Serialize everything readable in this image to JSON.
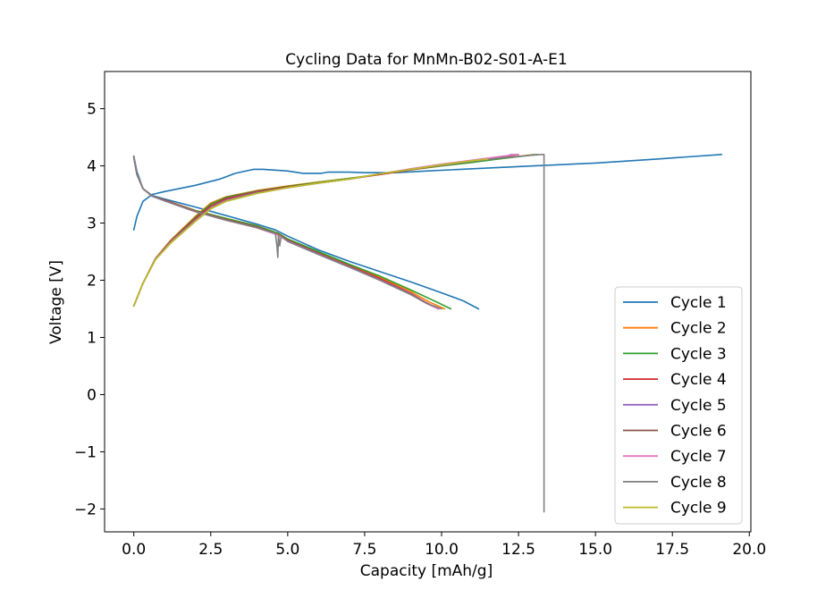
{
  "chart_data": {
    "type": "line",
    "title": "Cycling Data for MnMn-B02-S01-A-E1",
    "xlabel": "Capacity [mAh/g]",
    "ylabel": "Voltage [V]",
    "xlim": [
      -0.95,
      20.05
    ],
    "ylim": [
      -2.4,
      5.65
    ],
    "xticks": [
      0.0,
      2.5,
      5.0,
      7.5,
      10.0,
      12.5,
      15.0,
      17.5,
      20.0
    ],
    "xtick_labels": [
      "0.0",
      "2.5",
      "5.0",
      "7.5",
      "10.0",
      "12.5",
      "15.0",
      "17.5",
      "20.0"
    ],
    "yticks": [
      -2,
      -1,
      0,
      1,
      2,
      3,
      4,
      5
    ],
    "ytick_labels": [
      "−2",
      "−1",
      "0",
      "1",
      "2",
      "3",
      "4",
      "5"
    ],
    "grid": false,
    "legend_position": "lower-right",
    "series": [
      {
        "name": "Cycle 1",
        "color": "#1f77b4",
        "charge": [
          [
            0.0,
            2.88
          ],
          [
            0.1,
            3.12
          ],
          [
            0.3,
            3.38
          ],
          [
            0.6,
            3.5
          ],
          [
            1.0,
            3.55
          ],
          [
            2.0,
            3.66
          ],
          [
            2.8,
            3.77
          ],
          [
            3.3,
            3.87
          ],
          [
            3.9,
            3.94
          ],
          [
            4.2,
            3.94
          ],
          [
            5.0,
            3.91
          ],
          [
            5.5,
            3.87
          ],
          [
            6.1,
            3.87
          ],
          [
            6.3,
            3.89
          ],
          [
            7.0,
            3.89
          ],
          [
            7.5,
            3.88
          ],
          [
            8.5,
            3.88
          ],
          [
            9.5,
            3.91
          ],
          [
            11.0,
            3.95
          ],
          [
            13.0,
            4.0
          ],
          [
            15.0,
            4.05
          ],
          [
            17.0,
            4.12
          ],
          [
            19.1,
            4.2
          ]
        ],
        "discharge": [
          [
            0.0,
            4.17
          ],
          [
            0.1,
            3.9
          ],
          [
            0.3,
            3.6
          ],
          [
            0.6,
            3.48
          ],
          [
            1.0,
            3.42
          ],
          [
            2.0,
            3.28
          ],
          [
            3.0,
            3.13
          ],
          [
            4.0,
            2.98
          ],
          [
            4.6,
            2.88
          ],
          [
            5.0,
            2.77
          ],
          [
            6.0,
            2.53
          ],
          [
            7.0,
            2.33
          ],
          [
            8.0,
            2.15
          ],
          [
            9.0,
            1.97
          ],
          [
            10.0,
            1.78
          ],
          [
            10.7,
            1.64
          ],
          [
            11.2,
            1.5
          ]
        ]
      },
      {
        "name": "Cycle 2",
        "color": "#ff7f0e",
        "charge": [
          [
            0.0,
            1.55
          ],
          [
            0.3,
            1.95
          ],
          [
            0.7,
            2.38
          ],
          [
            1.2,
            2.7
          ],
          [
            2.0,
            3.12
          ],
          [
            2.5,
            3.35
          ],
          [
            3.0,
            3.46
          ],
          [
            4.0,
            3.57
          ],
          [
            5.0,
            3.65
          ],
          [
            6.0,
            3.72
          ],
          [
            7.0,
            3.78
          ],
          [
            8.0,
            3.85
          ],
          [
            9.0,
            3.93
          ],
          [
            10.0,
            4.0
          ],
          [
            11.0,
            4.07
          ],
          [
            12.0,
            4.13
          ],
          [
            13.0,
            4.2
          ]
        ],
        "discharge": [
          [
            0.0,
            4.15
          ],
          [
            0.1,
            3.85
          ],
          [
            0.3,
            3.6
          ],
          [
            0.6,
            3.47
          ],
          [
            1.0,
            3.4
          ],
          [
            2.0,
            3.22
          ],
          [
            3.0,
            3.08
          ],
          [
            4.0,
            2.95
          ],
          [
            4.7,
            2.82
          ],
          [
            5.0,
            2.72
          ],
          [
            6.0,
            2.49
          ],
          [
            7.0,
            2.27
          ],
          [
            8.0,
            2.05
          ],
          [
            9.0,
            1.8
          ],
          [
            9.6,
            1.62
          ],
          [
            10.1,
            1.5
          ]
        ]
      },
      {
        "name": "Cycle 3",
        "color": "#2ca02c",
        "charge": [
          [
            0.0,
            1.55
          ],
          [
            0.3,
            1.95
          ],
          [
            0.7,
            2.37
          ],
          [
            1.2,
            2.69
          ],
          [
            2.0,
            3.1
          ],
          [
            2.5,
            3.33
          ],
          [
            3.0,
            3.45
          ],
          [
            4.0,
            3.56
          ],
          [
            5.0,
            3.64
          ],
          [
            6.0,
            3.71
          ],
          [
            7.0,
            3.78
          ],
          [
            8.0,
            3.85
          ],
          [
            9.0,
            3.93
          ],
          [
            10.0,
            4.0
          ],
          [
            11.0,
            4.06
          ],
          [
            12.0,
            4.13
          ],
          [
            13.1,
            4.2
          ]
        ],
        "discharge": [
          [
            0.0,
            4.15
          ],
          [
            0.1,
            3.85
          ],
          [
            0.3,
            3.6
          ],
          [
            0.6,
            3.47
          ],
          [
            1.0,
            3.4
          ],
          [
            2.0,
            3.22
          ],
          [
            3.0,
            3.08
          ],
          [
            4.0,
            2.95
          ],
          [
            4.7,
            2.82
          ],
          [
            5.0,
            2.72
          ],
          [
            6.0,
            2.5
          ],
          [
            7.0,
            2.28
          ],
          [
            8.0,
            2.07
          ],
          [
            9.0,
            1.83
          ],
          [
            9.8,
            1.63
          ],
          [
            10.3,
            1.5
          ]
        ]
      },
      {
        "name": "Cycle 4",
        "color": "#d62728",
        "charge": [
          [
            0.0,
            1.55
          ],
          [
            0.3,
            1.95
          ],
          [
            0.7,
            2.37
          ],
          [
            1.2,
            2.68
          ],
          [
            2.0,
            3.08
          ],
          [
            2.5,
            3.3
          ],
          [
            3.0,
            3.43
          ],
          [
            4.0,
            3.55
          ],
          [
            5.0,
            3.63
          ],
          [
            6.0,
            3.7
          ],
          [
            7.0,
            3.77
          ],
          [
            8.0,
            3.85
          ],
          [
            9.0,
            3.93
          ],
          [
            10.0,
            4.01
          ],
          [
            11.0,
            4.08
          ],
          [
            12.0,
            4.15
          ],
          [
            12.5,
            4.2
          ]
        ],
        "discharge": [
          [
            0.0,
            4.15
          ],
          [
            0.1,
            3.85
          ],
          [
            0.3,
            3.6
          ],
          [
            0.6,
            3.47
          ],
          [
            1.0,
            3.4
          ],
          [
            2.0,
            3.21
          ],
          [
            3.0,
            3.06
          ],
          [
            4.0,
            2.93
          ],
          [
            4.7,
            2.8
          ],
          [
            5.0,
            2.7
          ],
          [
            6.0,
            2.47
          ],
          [
            7.0,
            2.25
          ],
          [
            8.0,
            2.03
          ],
          [
            9.0,
            1.77
          ],
          [
            9.5,
            1.61
          ],
          [
            9.9,
            1.5
          ]
        ]
      },
      {
        "name": "Cycle 5",
        "color": "#9467bd",
        "charge": [
          [
            0.0,
            1.55
          ],
          [
            0.3,
            1.95
          ],
          [
            0.7,
            2.37
          ],
          [
            1.2,
            2.67
          ],
          [
            2.0,
            3.06
          ],
          [
            2.5,
            3.28
          ],
          [
            3.0,
            3.41
          ],
          [
            4.0,
            3.54
          ],
          [
            5.0,
            3.62
          ],
          [
            6.0,
            3.7
          ],
          [
            7.0,
            3.77
          ],
          [
            8.0,
            3.86
          ],
          [
            9.0,
            3.94
          ],
          [
            10.0,
            4.02
          ],
          [
            11.0,
            4.09
          ],
          [
            12.0,
            4.16
          ],
          [
            12.3,
            4.2
          ]
        ],
        "discharge": [
          [
            0.0,
            4.15
          ],
          [
            0.1,
            3.85
          ],
          [
            0.3,
            3.6
          ],
          [
            0.6,
            3.47
          ],
          [
            1.0,
            3.39
          ],
          [
            2.0,
            3.2
          ],
          [
            3.0,
            3.05
          ],
          [
            4.0,
            2.92
          ],
          [
            4.7,
            2.79
          ],
          [
            5.0,
            2.69
          ],
          [
            6.0,
            2.46
          ],
          [
            7.0,
            2.24
          ],
          [
            8.0,
            2.01
          ],
          [
            9.0,
            1.76
          ],
          [
            9.5,
            1.6
          ],
          [
            9.9,
            1.5
          ]
        ]
      },
      {
        "name": "Cycle 6",
        "color": "#8c564b",
        "charge": [
          [
            0.0,
            1.55
          ],
          [
            0.3,
            1.95
          ],
          [
            0.7,
            2.36
          ],
          [
            1.2,
            2.66
          ],
          [
            2.0,
            3.05
          ],
          [
            2.5,
            3.27
          ],
          [
            3.0,
            3.4
          ],
          [
            4.0,
            3.53
          ],
          [
            5.0,
            3.62
          ],
          [
            6.0,
            3.7
          ],
          [
            7.0,
            3.77
          ],
          [
            8.0,
            3.86
          ],
          [
            9.0,
            3.94
          ],
          [
            10.0,
            4.02
          ],
          [
            11.0,
            4.09
          ],
          [
            12.0,
            4.16
          ],
          [
            12.4,
            4.2
          ]
        ],
        "discharge": [
          [
            0.0,
            4.15
          ],
          [
            0.1,
            3.85
          ],
          [
            0.3,
            3.6
          ],
          [
            0.6,
            3.47
          ],
          [
            1.0,
            3.39
          ],
          [
            2.0,
            3.2
          ],
          [
            3.0,
            3.05
          ],
          [
            4.0,
            2.92
          ],
          [
            4.7,
            2.79
          ],
          [
            5.0,
            2.68
          ],
          [
            6.0,
            2.45
          ],
          [
            7.0,
            2.23
          ],
          [
            8.0,
            2.0
          ],
          [
            9.0,
            1.75
          ],
          [
            9.5,
            1.6
          ],
          [
            9.9,
            1.5
          ]
        ]
      },
      {
        "name": "Cycle 7",
        "color": "#e377c2",
        "charge": [
          [
            0.0,
            1.55
          ],
          [
            0.3,
            1.95
          ],
          [
            0.7,
            2.36
          ],
          [
            1.2,
            2.66
          ],
          [
            2.0,
            3.04
          ],
          [
            2.5,
            3.26
          ],
          [
            3.0,
            3.39
          ],
          [
            4.0,
            3.52
          ],
          [
            5.0,
            3.62
          ],
          [
            6.0,
            3.7
          ],
          [
            7.0,
            3.77
          ],
          [
            8.0,
            3.86
          ],
          [
            9.0,
            3.95
          ],
          [
            10.0,
            4.03
          ],
          [
            11.0,
            4.1
          ],
          [
            12.0,
            4.17
          ],
          [
            12.5,
            4.2
          ]
        ],
        "discharge": [
          [
            0.0,
            4.15
          ],
          [
            0.1,
            3.85
          ],
          [
            0.3,
            3.6
          ],
          [
            0.6,
            3.47
          ],
          [
            1.0,
            3.39
          ],
          [
            2.0,
            3.2
          ],
          [
            3.0,
            3.05
          ],
          [
            4.0,
            2.92
          ],
          [
            4.7,
            2.79
          ],
          [
            5.0,
            2.68
          ],
          [
            6.0,
            2.45
          ],
          [
            7.0,
            2.23
          ],
          [
            8.0,
            2.0
          ],
          [
            9.0,
            1.75
          ],
          [
            9.5,
            1.6
          ],
          [
            9.9,
            1.5
          ]
        ]
      },
      {
        "name": "Cycle 8",
        "color": "#7f7f7f",
        "charge": [
          [
            0.0,
            1.55
          ],
          [
            0.3,
            1.95
          ],
          [
            0.7,
            2.36
          ],
          [
            1.2,
            2.65
          ],
          [
            2.0,
            3.03
          ],
          [
            2.5,
            3.25
          ],
          [
            3.0,
            3.38
          ],
          [
            4.0,
            3.52
          ],
          [
            5.0,
            3.62
          ],
          [
            6.0,
            3.7
          ],
          [
            7.0,
            3.77
          ],
          [
            8.0,
            3.86
          ],
          [
            9.0,
            3.94
          ],
          [
            10.0,
            4.01
          ],
          [
            11.0,
            4.08
          ],
          [
            12.0,
            4.14
          ],
          [
            13.0,
            4.19
          ],
          [
            13.3,
            4.2
          ],
          [
            13.33,
            4.2
          ],
          [
            13.33,
            -2.05
          ]
        ],
        "discharge": [
          [
            0.0,
            4.15
          ],
          [
            0.1,
            3.85
          ],
          [
            0.3,
            3.6
          ],
          [
            0.6,
            3.47
          ],
          [
            1.0,
            3.39
          ],
          [
            2.0,
            3.2
          ],
          [
            3.0,
            3.05
          ],
          [
            4.0,
            2.92
          ],
          [
            4.6,
            2.82
          ],
          [
            4.65,
            2.6
          ],
          [
            4.68,
            2.4
          ],
          [
            4.7,
            2.8
          ],
          [
            4.74,
            2.6
          ],
          [
            4.78,
            2.75
          ],
          [
            4.85,
            2.75
          ],
          [
            5.0,
            2.68
          ],
          [
            6.0,
            2.45
          ],
          [
            7.0,
            2.23
          ],
          [
            8.0,
            2.0
          ],
          [
            9.0,
            1.75
          ],
          [
            9.5,
            1.6
          ],
          [
            10.0,
            1.5
          ]
        ]
      },
      {
        "name": "Cycle 9",
        "color": "#bcbd22",
        "charge": [
          [
            0.0,
            1.55
          ],
          [
            0.3,
            1.95
          ],
          [
            0.7,
            2.36
          ],
          [
            1.2,
            2.65
          ],
          [
            2.0,
            3.03
          ],
          [
            2.5,
            3.25
          ],
          [
            3.0,
            3.38
          ],
          [
            4.0,
            3.52
          ],
          [
            5.0,
            3.62
          ],
          [
            6.0,
            3.7
          ],
          [
            7.0,
            3.77
          ],
          [
            8.0,
            3.86
          ],
          [
            9.0,
            3.94
          ],
          [
            10.0,
            4.02
          ],
          [
            11.0,
            4.09
          ],
          [
            11.5,
            4.12
          ]
        ],
        "discharge": []
      }
    ]
  }
}
